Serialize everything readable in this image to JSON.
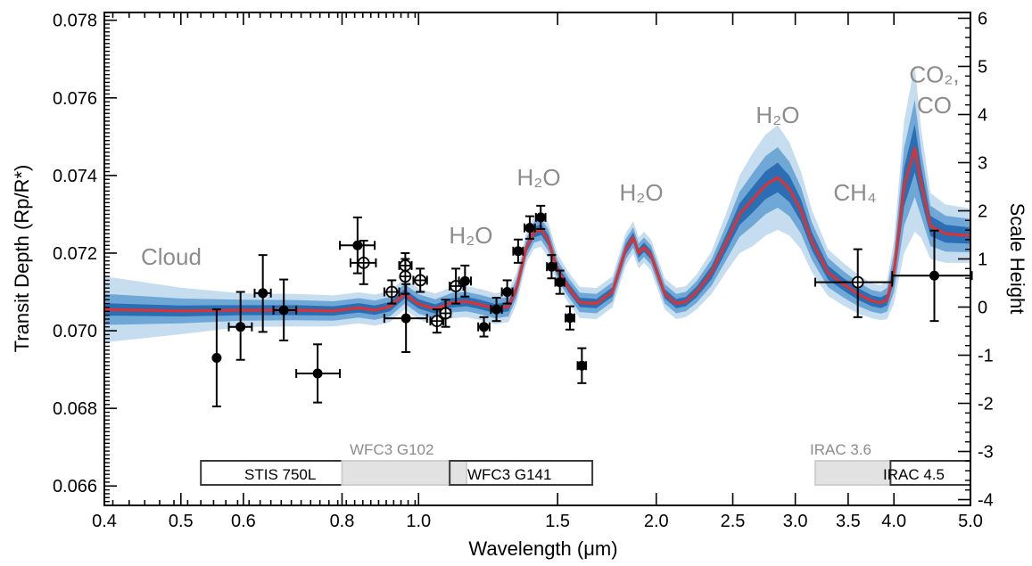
{
  "chart_data": {
    "type": "line",
    "xlabel": "Wavelength (μm)",
    "ylabel_left": "Transit Depth (Rp/R*)",
    "ylabel_right": "Scale Height",
    "x_scale": "log",
    "xlim": [
      0.4,
      5.0
    ],
    "ylim": [
      0.0655,
      0.0782
    ],
    "y2lim": [
      -4.12,
      6.12
    ],
    "grid": false,
    "x_ticks": [
      {
        "v": 0.4,
        "label": "0.4"
      },
      {
        "v": 0.5,
        "label": "0.5"
      },
      {
        "v": 0.6,
        "label": "0.6"
      },
      {
        "v": 0.8,
        "label": "0.8"
      },
      {
        "v": 1.0,
        "label": "1.0"
      },
      {
        "v": 1.5,
        "label": "1.5"
      },
      {
        "v": 2.0,
        "label": "2.0"
      },
      {
        "v": 2.5,
        "label": "2.5"
      },
      {
        "v": 3.0,
        "label": "3.0"
      },
      {
        "v": 3.5,
        "label": "3.5"
      },
      {
        "v": 4.0,
        "label": "4.0"
      },
      {
        "v": 5.0,
        "label": "5.0"
      }
    ],
    "y_ticks": [
      {
        "v": 0.066,
        "label": "0.066"
      },
      {
        "v": 0.068,
        "label": "0.068"
      },
      {
        "v": 0.07,
        "label": "0.070"
      },
      {
        "v": 0.072,
        "label": "0.072"
      },
      {
        "v": 0.074,
        "label": "0.074"
      },
      {
        "v": 0.076,
        "label": "0.076"
      },
      {
        "v": 0.078,
        "label": "0.078"
      }
    ],
    "y2_ticks": [
      {
        "v": -4,
        "label": "-4"
      },
      {
        "v": -3,
        "label": "-3"
      },
      {
        "v": -2,
        "label": "-2"
      },
      {
        "v": -1,
        "label": "-1"
      },
      {
        "v": 0,
        "label": "0"
      },
      {
        "v": 1,
        "label": "1"
      },
      {
        "v": 2,
        "label": "2"
      },
      {
        "v": 3,
        "label": "3"
      },
      {
        "v": 4,
        "label": "4"
      },
      {
        "v": 5,
        "label": "5"
      },
      {
        "v": 6,
        "label": "6"
      }
    ],
    "model": {
      "color": "#e03030",
      "band_colors": [
        "#c6dcef",
        "#6fa8d6",
        "#2b6eb3"
      ],
      "x": [
        0.4,
        0.5,
        0.6,
        0.7,
        0.78,
        0.84,
        0.88,
        0.92,
        0.96,
        1.0,
        1.05,
        1.1,
        1.15,
        1.2,
        1.25,
        1.3,
        1.33,
        1.37,
        1.4,
        1.43,
        1.46,
        1.5,
        1.55,
        1.6,
        1.68,
        1.76,
        1.83,
        1.87,
        1.9,
        1.93,
        1.97,
        2.05,
        2.12,
        2.18,
        2.25,
        2.35,
        2.45,
        2.55,
        2.65,
        2.75,
        2.85,
        2.95,
        3.05,
        3.15,
        3.3,
        3.45,
        3.6,
        3.75,
        3.85,
        3.92,
        4.0,
        4.12,
        4.25,
        4.33,
        4.45,
        4.65,
        5.0
      ],
      "y": [
        0.07055,
        0.07051,
        0.07053,
        0.07053,
        0.07051,
        0.07059,
        0.07053,
        0.07062,
        0.07095,
        0.07069,
        0.07056,
        0.07072,
        0.07075,
        0.07067,
        0.07057,
        0.07062,
        0.07108,
        0.07215,
        0.07253,
        0.07261,
        0.07233,
        0.07157,
        0.0711,
        0.07073,
        0.0707,
        0.071,
        0.0721,
        0.0724,
        0.072,
        0.07215,
        0.07195,
        0.07095,
        0.0707,
        0.07075,
        0.071,
        0.0715,
        0.07225,
        0.073,
        0.07338,
        0.07375,
        0.07395,
        0.07365,
        0.0731,
        0.0723,
        0.0715,
        0.0712,
        0.07095,
        0.07077,
        0.07072,
        0.0708,
        0.0715,
        0.0737,
        0.0747,
        0.0738,
        0.0727,
        0.0725,
        0.07245
      ],
      "bands": [
        {
          "level": "3-sigma",
          "halfwidth": [
            0.00085,
            0.0006,
            0.00043,
            0.00042,
            0.0004,
            0.0004,
            0.0004,
            0.0004,
            0.0004,
            0.0004,
            0.0004,
            0.0004,
            0.0004,
            0.0004,
            0.0004,
            0.0004,
            0.0004,
            0.0004,
            0.00042,
            0.00045,
            0.00045,
            0.0004,
            0.0004,
            0.0004,
            0.0004,
            0.0004,
            0.00042,
            0.00042,
            0.0004,
            0.0004,
            0.0004,
            0.0004,
            0.0004,
            0.0004,
            0.00045,
            0.00055,
            0.00075,
            0.001,
            0.0012,
            0.0013,
            0.00135,
            0.0012,
            0.001,
            0.0008,
            0.0006,
            0.00055,
            0.0005,
            0.00045,
            0.00045,
            0.0005,
            0.0008,
            0.0017,
            0.00215,
            0.0014,
            0.00085,
            0.00075,
            0.0007
          ]
        },
        {
          "level": "2-sigma",
          "halfwidth": [
            0.0004,
            0.00032,
            0.00027,
            0.00026,
            0.00025,
            0.00025,
            0.00025,
            0.00025,
            0.00025,
            0.00025,
            0.00025,
            0.00025,
            0.00025,
            0.00025,
            0.00025,
            0.00025,
            0.00025,
            0.00025,
            0.00026,
            0.00028,
            0.00028,
            0.00025,
            0.00025,
            0.00025,
            0.00025,
            0.00025,
            0.00026,
            0.00026,
            0.00025,
            0.00025,
            0.00025,
            0.00025,
            0.00025,
            0.00025,
            0.00028,
            0.00034,
            0.00045,
            0.00058,
            0.00068,
            0.00075,
            0.00078,
            0.0007,
            0.0006,
            0.00048,
            0.00038,
            0.00034,
            0.00031,
            0.00028,
            0.00028,
            0.00031,
            0.0005,
            0.001,
            0.00125,
            0.00085,
            0.00052,
            0.00046,
            0.00043
          ]
        },
        {
          "level": "1-sigma",
          "halfwidth": [
            0.00016,
            0.00014,
            0.00013,
            0.00013,
            0.00012,
            0.00012,
            0.00012,
            0.00012,
            0.00012,
            0.00012,
            0.00012,
            0.00012,
            0.00012,
            0.00012,
            0.00012,
            0.00012,
            0.00012,
            0.00012,
            0.00013,
            0.00014,
            0.00014,
            0.00012,
            0.00012,
            0.00012,
            0.00012,
            0.00012,
            0.00013,
            0.00013,
            0.00012,
            0.00012,
            0.00012,
            0.00012,
            0.00012,
            0.00012,
            0.00014,
            0.00017,
            0.00022,
            0.00028,
            0.00033,
            0.00036,
            0.00038,
            0.00034,
            0.00029,
            0.00023,
            0.00018,
            0.00016,
            0.00015,
            0.00014,
            0.00014,
            0.00015,
            0.00024,
            0.0005,
            0.00062,
            0.00042,
            0.00026,
            0.00023,
            0.00021
          ]
        }
      ]
    },
    "observations": [
      {
        "x": 0.555,
        "y": 0.0693,
        "ylo": 0.06805,
        "yhi": 0.07055,
        "xlo": 0.555,
        "xhi": 0.555,
        "filled": true
      },
      {
        "x": 0.595,
        "y": 0.0701,
        "ylo": 0.06925,
        "yhi": 0.071,
        "xlo": 0.575,
        "xhi": 0.615,
        "filled": true
      },
      {
        "x": 0.635,
        "y": 0.07097,
        "ylo": 0.06997,
        "yhi": 0.07195,
        "xlo": 0.62,
        "xhi": 0.65,
        "filled": true
      },
      {
        "x": 0.675,
        "y": 0.07053,
        "ylo": 0.06975,
        "yhi": 0.07132,
        "xlo": 0.655,
        "xhi": 0.7,
        "filled": true
      },
      {
        "x": 0.745,
        "y": 0.0689,
        "ylo": 0.06815,
        "yhi": 0.06965,
        "xlo": 0.7,
        "xhi": 0.795,
        "filled": true
      },
      {
        "x": 0.837,
        "y": 0.0722,
        "ylo": 0.07148,
        "yhi": 0.07292,
        "xlo": 0.795,
        "xhi": 0.88,
        "filled": true
      },
      {
        "x": 0.852,
        "y": 0.07175,
        "ylo": 0.0712,
        "yhi": 0.07232,
        "xlo": 0.82,
        "xhi": 0.883,
        "filled": false
      },
      {
        "x": 0.925,
        "y": 0.071,
        "ylo": 0.0707,
        "yhi": 0.0713,
        "xlo": 0.905,
        "xhi": 0.945,
        "filled": false
      },
      {
        "x": 0.962,
        "y": 0.07168,
        "ylo": 0.07135,
        "yhi": 0.072,
        "xlo": 0.945,
        "xhi": 0.98,
        "filled": false
      },
      {
        "x": 0.964,
        "y": 0.07032,
        "ylo": 0.06945,
        "yhi": 0.0712,
        "xlo": 0.905,
        "xhi": 1.025,
        "filled": true
      },
      {
        "x": 0.962,
        "y": 0.0714,
        "ylo": 0.07095,
        "yhi": 0.07185,
        "xlo": 0.962,
        "xhi": 0.962,
        "filled": false
      },
      {
        "x": 1.005,
        "y": 0.0713,
        "ylo": 0.071,
        "yhi": 0.0716,
        "xlo": 0.985,
        "xhi": 1.025,
        "filled": false
      },
      {
        "x": 1.055,
        "y": 0.07025,
        "ylo": 0.06995,
        "yhi": 0.07055,
        "xlo": 1.035,
        "xhi": 1.075,
        "filled": false
      },
      {
        "x": 1.082,
        "y": 0.07045,
        "ylo": 0.0701,
        "yhi": 0.0708,
        "xlo": 1.065,
        "xhi": 1.098,
        "filled": false
      },
      {
        "x": 1.115,
        "y": 0.07115,
        "ylo": 0.0707,
        "yhi": 0.0716,
        "xlo": 1.095,
        "xhi": 1.14,
        "filled": false
      },
      {
        "x": 1.145,
        "y": 0.07128,
        "ylo": 0.07088,
        "yhi": 0.07168,
        "xlo": 1.125,
        "xhi": 1.165,
        "filled": true
      },
      {
        "x": 1.21,
        "y": 0.0701,
        "ylo": 0.06985,
        "yhi": 0.07035,
        "xlo": 1.19,
        "xhi": 1.23,
        "filled": true
      },
      {
        "x": 1.255,
        "y": 0.07055,
        "ylo": 0.07025,
        "yhi": 0.07085,
        "xlo": 1.235,
        "xhi": 1.275,
        "filled": true
      },
      {
        "x": 1.295,
        "y": 0.071,
        "ylo": 0.0707,
        "yhi": 0.0713,
        "xlo": 1.275,
        "xhi": 1.315,
        "filled": true
      },
      {
        "x": 1.337,
        "y": 0.07205,
        "ylo": 0.07175,
        "yhi": 0.07235,
        "xlo": 1.318,
        "xhi": 1.356,
        "filled": true
      },
      {
        "x": 1.383,
        "y": 0.07265,
        "ylo": 0.07237,
        "yhi": 0.07295,
        "xlo": 1.362,
        "xhi": 1.404,
        "filled": true
      },
      {
        "x": 1.428,
        "y": 0.07292,
        "ylo": 0.07262,
        "yhi": 0.07322,
        "xlo": 1.408,
        "xhi": 1.448,
        "filled": true
      },
      {
        "x": 1.474,
        "y": 0.07165,
        "ylo": 0.07135,
        "yhi": 0.07195,
        "xlo": 1.454,
        "xhi": 1.494,
        "filled": true
      },
      {
        "x": 1.51,
        "y": 0.07125,
        "ylo": 0.07095,
        "yhi": 0.07155,
        "xlo": 1.49,
        "xhi": 1.53,
        "filled": true
      },
      {
        "x": 1.555,
        "y": 0.07033,
        "ylo": 0.07003,
        "yhi": 0.07063,
        "xlo": 1.535,
        "xhi": 1.575,
        "filled": true
      },
      {
        "x": 1.61,
        "y": 0.0691,
        "ylo": 0.06865,
        "yhi": 0.06955,
        "xlo": 1.59,
        "xhi": 1.63,
        "filled": true
      },
      {
        "x": 3.6,
        "y": 0.07125,
        "ylo": 0.07035,
        "yhi": 0.0721,
        "xlo": 3.18,
        "xhi": 3.98,
        "filled": false
      },
      {
        "x": 4.5,
        "y": 0.07142,
        "ylo": 0.07025,
        "yhi": 0.07258,
        "xlo": 3.98,
        "xhi": 5.02,
        "filled": true
      }
    ],
    "annotations": [
      {
        "text": "Cloud",
        "x": 0.445,
        "y": 0.0717
      },
      {
        "text": "H₂O",
        "x": 1.165,
        "y": 0.07225
      },
      {
        "text": "H₂O",
        "x": 1.42,
        "y": 0.07375
      },
      {
        "text": "H₂O",
        "x": 1.915,
        "y": 0.07335
      },
      {
        "text": "H₂O",
        "x": 2.85,
        "y": 0.07535
      },
      {
        "text": "CH₄",
        "x": 3.57,
        "y": 0.07335
      },
      {
        "text": "CO₂,",
        "x": 4.5,
        "y": 0.0764
      },
      {
        "text": "CO",
        "x": 4.5,
        "y": 0.0756
      }
    ],
    "instruments": [
      {
        "label": "STIS 750L",
        "x0": 0.53,
        "x1": 1.02,
        "style": "outline",
        "row": "bottom"
      },
      {
        "label": "WFC3 G102",
        "x0": 0.8,
        "x1": 1.15,
        "style": "shaded",
        "row": "bottom"
      },
      {
        "label": "WFC3 G141",
        "x0": 1.095,
        "x1": 1.66,
        "style": "outline",
        "row": "bottom"
      },
      {
        "label": "IRAC 3.6",
        "x0": 3.18,
        "x1": 3.96,
        "style": "shaded",
        "row": "bottom"
      },
      {
        "label": "IRAC 4.5",
        "x0": 3.96,
        "x1": 5.02,
        "style": "outline",
        "row": "bottom"
      }
    ]
  }
}
